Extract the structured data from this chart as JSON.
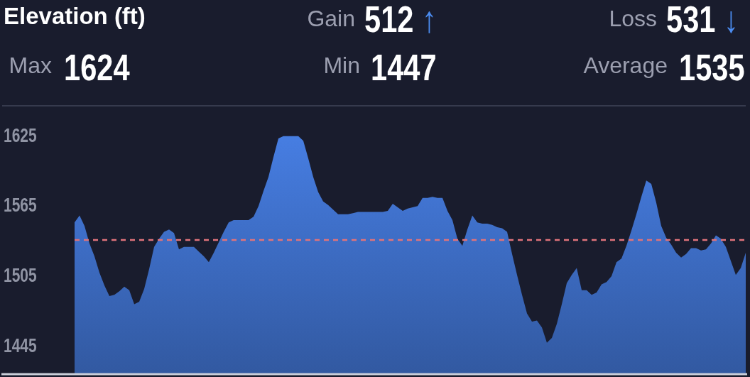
{
  "chart_data": {
    "type": "area",
    "title": "Elevation (ft)",
    "annotations": [
      "Gain 512 ↑",
      "Loss 531 ↓",
      "Max 1624",
      "Min 1447",
      "Average 1535"
    ],
    "categories": [
      null,
      null,
      null,
      null,
      null,
      null,
      null,
      null,
      null,
      null,
      null,
      null,
      null,
      null,
      null,
      null,
      null,
      null,
      null,
      null,
      null,
      null,
      null,
      null,
      null,
      null,
      null,
      null,
      null,
      null,
      null,
      null,
      null,
      null,
      null,
      null,
      null,
      null,
      null,
      null,
      null,
      null,
      null,
      null,
      null,
      null,
      null,
      null,
      null,
      null,
      null,
      null,
      null,
      null,
      null,
      null,
      null,
      null,
      null,
      null,
      null,
      null,
      null,
      null,
      null,
      null,
      null,
      null,
      null,
      null,
      null,
      null,
      null,
      null,
      null,
      null,
      null,
      null,
      null,
      null,
      null,
      null,
      null,
      null,
      null,
      null,
      null,
      null,
      null,
      null,
      null,
      null,
      null,
      null,
      null,
      null,
      null,
      null,
      null,
      null,
      null,
      null,
      null,
      null,
      null,
      null,
      null,
      null,
      null,
      null,
      null,
      null,
      null,
      null,
      null,
      null,
      null,
      null,
      null,
      null,
      null,
      null,
      null,
      null,
      null,
      null,
      null,
      null,
      null,
      null,
      null,
      null,
      null,
      null,
      null,
      null
    ],
    "color": "#4377d6",
    "values": [
      1550,
      1556,
      1547,
      1532,
      1521,
      1507,
      1496,
      1487,
      1488,
      1491,
      1495,
      1492,
      1480,
      1482,
      1493,
      1510,
      1529,
      1536,
      1542,
      1544,
      1541,
      1527,
      1529,
      1529,
      1529,
      1525,
      1521,
      1516,
      1524,
      1533,
      1542,
      1550,
      1552,
      1552,
      1552,
      1552,
      1555,
      1564,
      1577,
      1589,
      1606,
      1622,
      1624,
      1624,
      1624,
      1624,
      1620,
      1605,
      1589,
      1576,
      1568,
      1565,
      1561,
      1557,
      1557,
      1557,
      1558,
      1559,
      1559,
      1559,
      1559,
      1559,
      1559,
      1560,
      1566,
      1563,
      1560,
      1562,
      1563,
      1564,
      1571,
      1571,
      1572,
      1571,
      1571,
      1560,
      1552,
      1536,
      1530,
      1544,
      1556,
      1550,
      1549,
      1549,
      1548,
      1546,
      1545,
      1542,
      1523,
      1505,
      1488,
      1472,
      1465,
      1466,
      1460,
      1447,
      1451,
      1463,
      1480,
      1498,
      1505,
      1511,
      1492,
      1492,
      1488,
      1490,
      1497,
      1499,
      1504,
      1516,
      1519,
      1530,
      1543,
      1557,
      1572,
      1586,
      1583,
      1567,
      1547,
      1537,
      1531,
      1524,
      1520,
      1523,
      1528,
      1528,
      1526,
      1527,
      1532,
      1539,
      1536,
      1529,
      1517,
      1505,
      1511,
      1524
    ],
    "ylim": [
      1420,
      1650
    ],
    "yticks": [
      1445,
      1505,
      1565,
      1625
    ],
    "ref_lines": [
      {
        "axis": "y",
        "value": 1535,
        "color": "#e0737b",
        "line_style": "dashed"
      }
    ],
    "tick_labels": "y"
  }
}
